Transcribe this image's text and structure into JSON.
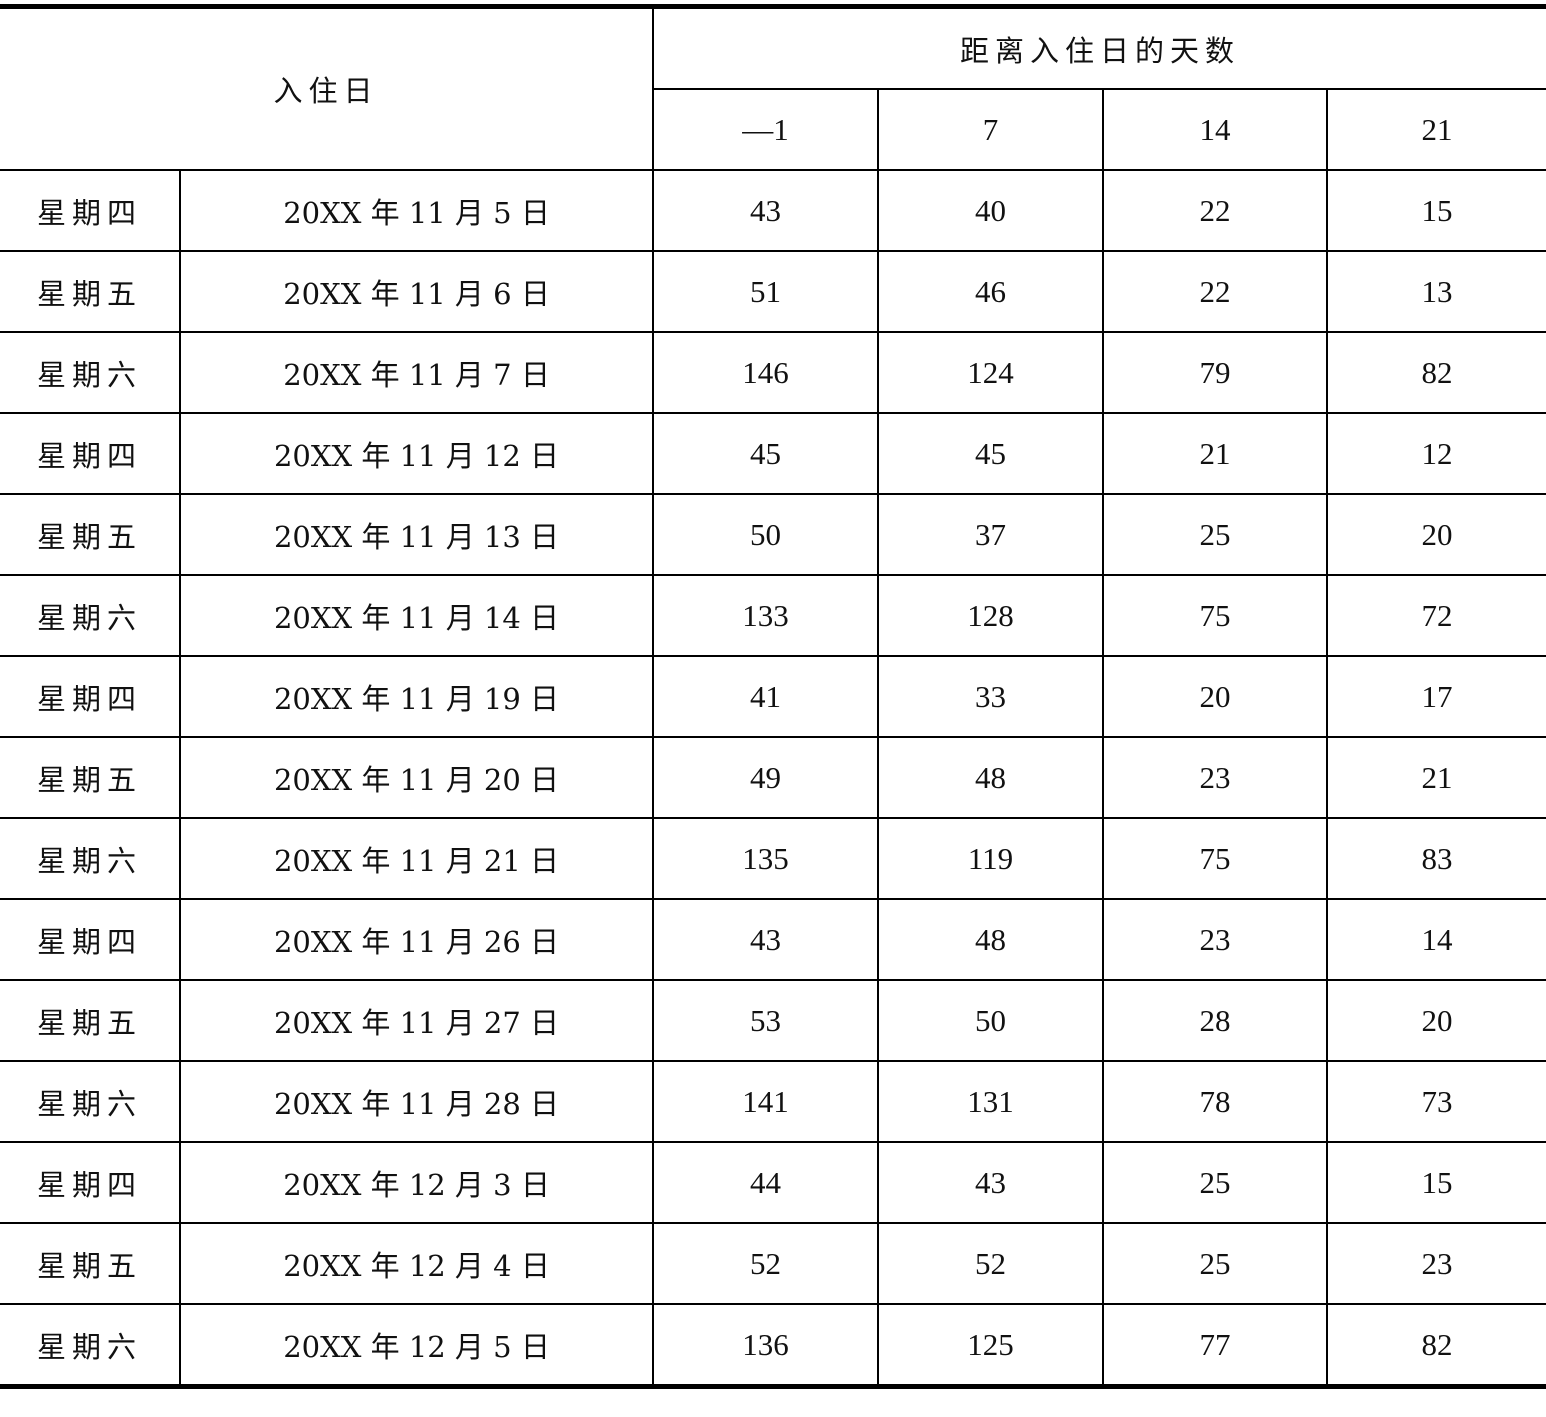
{
  "header": {
    "checkin_label": "入住日",
    "days_label": "距离入住日的天数",
    "day_offsets": [
      "—1",
      "7",
      "14",
      "21"
    ]
  },
  "rows": [
    {
      "weekday": "星期四",
      "date": "20XX 年 11 月 5 日",
      "values": [
        "43",
        "40",
        "22",
        "15"
      ]
    },
    {
      "weekday": "星期五",
      "date": "20XX 年 11 月 6 日",
      "values": [
        "51",
        "46",
        "22",
        "13"
      ]
    },
    {
      "weekday": "星期六",
      "date": "20XX 年 11 月 7 日",
      "values": [
        "146",
        "124",
        "79",
        "82"
      ]
    },
    {
      "weekday": "星期四",
      "date": "20XX 年 11 月 12 日",
      "values": [
        "45",
        "45",
        "21",
        "12"
      ]
    },
    {
      "weekday": "星期五",
      "date": "20XX 年 11 月 13 日",
      "values": [
        "50",
        "37",
        "25",
        "20"
      ]
    },
    {
      "weekday": "星期六",
      "date": "20XX 年 11 月 14 日",
      "values": [
        "133",
        "128",
        "75",
        "72"
      ]
    },
    {
      "weekday": "星期四",
      "date": "20XX 年 11 月 19 日",
      "values": [
        "41",
        "33",
        "20",
        "17"
      ]
    },
    {
      "weekday": "星期五",
      "date": "20XX 年 11 月 20 日",
      "values": [
        "49",
        "48",
        "23",
        "21"
      ]
    },
    {
      "weekday": "星期六",
      "date": "20XX 年 11 月 21 日",
      "values": [
        "135",
        "119",
        "75",
        "83"
      ]
    },
    {
      "weekday": "星期四",
      "date": "20XX 年 11 月 26 日",
      "values": [
        "43",
        "48",
        "23",
        "14"
      ]
    },
    {
      "weekday": "星期五",
      "date": "20XX 年 11 月 27 日",
      "values": [
        "53",
        "50",
        "28",
        "20"
      ]
    },
    {
      "weekday": "星期六",
      "date": "20XX 年 11 月 28 日",
      "values": [
        "141",
        "131",
        "78",
        "73"
      ]
    },
    {
      "weekday": "星期四",
      "date": "20XX 年 12 月 3 日",
      "values": [
        "44",
        "43",
        "25",
        "15"
      ]
    },
    {
      "weekday": "星期五",
      "date": "20XX 年 12 月 4 日",
      "values": [
        "52",
        "52",
        "25",
        "23"
      ]
    },
    {
      "weekday": "星期六",
      "date": "20XX 年 12 月 5 日",
      "values": [
        "136",
        "125",
        "77",
        "82"
      ]
    }
  ]
}
